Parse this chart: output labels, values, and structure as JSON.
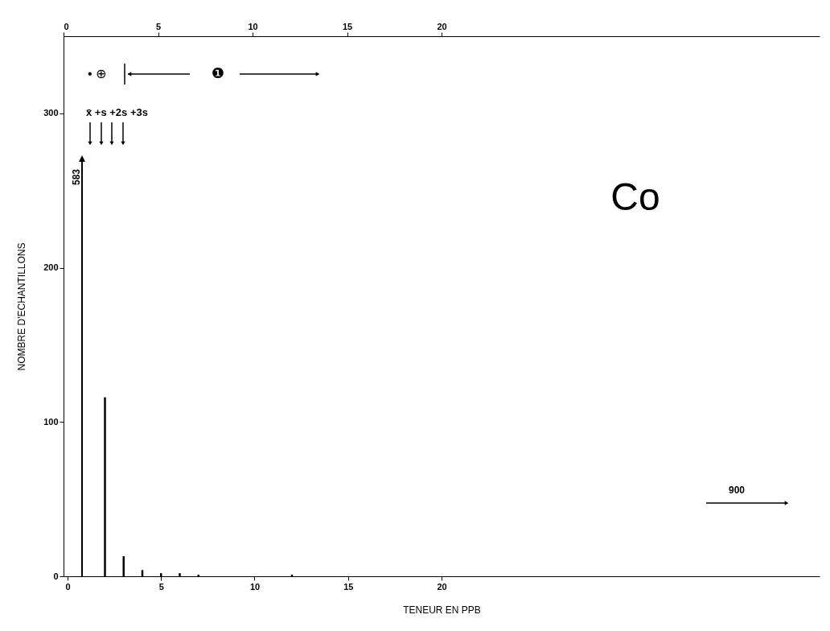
{
  "chart_data": {
    "type": "bar",
    "xlabel": "TENEUR EN PPB",
    "ylabel": "NOMBRE D'ECHANTILLONS",
    "x": [
      2,
      3,
      4,
      5,
      6,
      7,
      12
    ],
    "values": [
      116,
      13,
      4,
      2,
      2,
      1,
      1
    ],
    "color": "#000000",
    "xlim": [
      0,
      40
    ],
    "xticks": [
      0,
      5,
      10,
      15,
      20
    ],
    "x2lim": [
      0,
      40
    ],
    "x2ticks": [
      0,
      5,
      10,
      15,
      20
    ],
    "ylim": [
      0,
      350
    ],
    "yticks": [
      0,
      100,
      200,
      300
    ],
    "grid": false,
    "annotations": [
      "Co",
      "583",
      "x̄ +s +2s +3s",
      "• ⊕",
      "❶",
      "900"
    ]
  }
}
